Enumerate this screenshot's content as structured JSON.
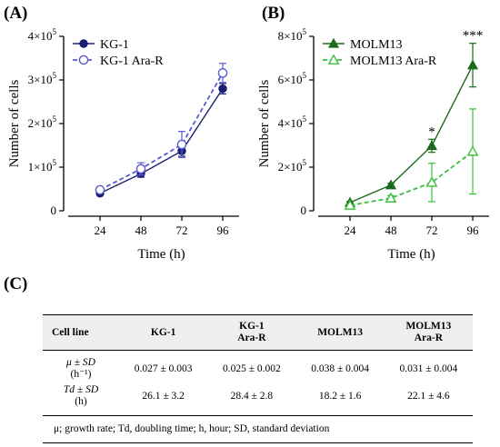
{
  "panels": {
    "a_label": "(A)",
    "b_label": "(B)",
    "c_label": "(C)"
  },
  "chart_data": [
    {
      "type": "line",
      "panel": "A",
      "xlabel": "Time (h)",
      "ylabel": "Number of cells",
      "x": [
        24,
        48,
        72,
        96
      ],
      "ylim": [
        0,
        400000
      ],
      "yticks": [
        {
          "base": "0",
          "exp": ""
        },
        {
          "base": "1×10",
          "exp": "5"
        },
        {
          "base": "2×10",
          "exp": "5"
        },
        {
          "base": "3×10",
          "exp": "5"
        },
        {
          "base": "4×10",
          "exp": "5"
        }
      ],
      "legend_position": "top-left",
      "series": [
        {
          "name": "KG-1",
          "color": "#1b1f72",
          "dashed": false,
          "marker": "filled-circle",
          "values": [
            40000,
            85000,
            137000,
            280000
          ],
          "errors": [
            3000,
            8000,
            12000,
            12000
          ]
        },
        {
          "name": "KG-1 Ara-R",
          "color": "#5a5ad6",
          "dashed": true,
          "marker": "open-circle",
          "values": [
            48000,
            96000,
            152000,
            316000
          ],
          "errors": [
            5000,
            14000,
            30000,
            22000
          ]
        }
      ],
      "annotations": []
    },
    {
      "type": "line",
      "panel": "B",
      "xlabel": "Time (h)",
      "ylabel": "Number of cells",
      "x": [
        24,
        48,
        72,
        96
      ],
      "ylim": [
        0,
        800000
      ],
      "yticks": [
        {
          "base": "0",
          "exp": ""
        },
        {
          "base": "2×10",
          "exp": "5"
        },
        {
          "base": "4×10",
          "exp": "5"
        },
        {
          "base": "6×10",
          "exp": "5"
        },
        {
          "base": "8×10",
          "exp": "5"
        }
      ],
      "legend_position": "top-left",
      "series": [
        {
          "name": "MOLM13",
          "color": "#1a6b1a",
          "dashed": false,
          "marker": "filled-triangle",
          "values": [
            38000,
            118000,
            298000,
            668000
          ],
          "errors": [
            5000,
            8000,
            30000,
            100000
          ]
        },
        {
          "name": "MOLM13 Ara-R",
          "color": "#3bbf3b",
          "dashed": true,
          "marker": "open-triangle",
          "values": [
            25000,
            58000,
            130000,
            272000
          ],
          "errors": [
            5000,
            12000,
            88000,
            195000
          ]
        }
      ],
      "annotations": [
        {
          "x": 72,
          "text": "*"
        },
        {
          "x": 96,
          "text": "***"
        }
      ]
    }
  ],
  "table": {
    "headers": [
      "Cell line",
      "KG-1",
      "KG-1\nAra-R",
      "MOLM13",
      "MOLM13\nAra-R"
    ],
    "rows": [
      {
        "label_main": "μ ± SD",
        "label_unit": "(h⁻¹)",
        "cells": [
          "0.027 ± 0.003",
          "0.025 ± 0.002",
          "0.038 ± 0.004",
          "0.031 ± 0.004"
        ]
      },
      {
        "label_main": "Td ± SD",
        "label_unit": "(h)",
        "cells": [
          "26.1 ± 3.2",
          "28.4 ± 2.8",
          "18.2 ± 1.6",
          "22.1 ± 4.6"
        ]
      }
    ],
    "footnote": "μ; growth rate; Td, doubling time; h, hour; SD, standard deviation"
  }
}
